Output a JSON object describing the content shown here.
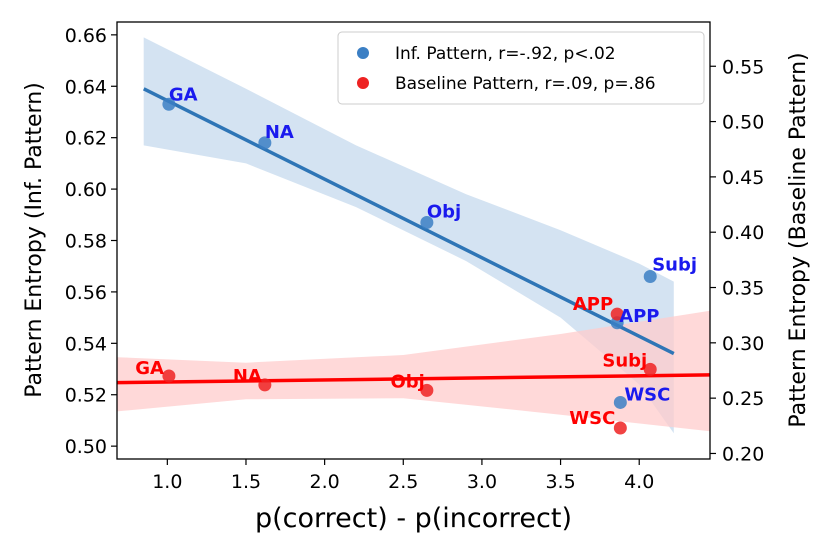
{
  "chart_data": {
    "type": "scatter",
    "xlabel": "p(correct) - p(incorrect)",
    "ylabel_left": "Pattern Entropy (Inf. Pattern)",
    "ylabel_right": "Pattern Entropy (Baseline Pattern)",
    "xlim": [
      0.68,
      4.45
    ],
    "ylim_left": [
      0.495,
      0.665
    ],
    "ylim_right": [
      0.195,
      0.59
    ],
    "x_ticks": [
      "1.0",
      "1.5",
      "2.0",
      "2.5",
      "3.0",
      "3.5",
      "4.0"
    ],
    "y_left_ticks": [
      "0.50",
      "0.52",
      "0.54",
      "0.56",
      "0.58",
      "0.60",
      "0.62",
      "0.64",
      "0.66"
    ],
    "y_right_ticks": [
      "0.20",
      "0.25",
      "0.30",
      "0.35",
      "0.40",
      "0.45",
      "0.50",
      "0.55"
    ],
    "legend": {
      "position": "top-right",
      "entries": [
        {
          "label": "Inf. Pattern, r=-.92, p<.02",
          "color": "#3b7fc4"
        },
        {
          "label": "Baseline Pattern, r=.09, p=.86",
          "color": "#ee2222"
        }
      ]
    },
    "series": [
      {
        "name": "Inf. Pattern",
        "axis": "left",
        "color": "#3b7fc4",
        "line_color": "#2e75b6",
        "band_color": "#c6d9ee",
        "label_color": "#1a1aee",
        "points": [
          {
            "label": "GA",
            "x": 1.01,
            "y": 0.633
          },
          {
            "label": "NA",
            "x": 1.62,
            "y": 0.618
          },
          {
            "label": "Obj",
            "x": 2.65,
            "y": 0.587
          },
          {
            "label": "Subj",
            "x": 4.07,
            "y": 0.566
          },
          {
            "label": "APP",
            "x": 3.86,
            "y": 0.548
          },
          {
            "label": "WSC",
            "x": 3.88,
            "y": 0.517
          }
        ],
        "fit": {
          "x": [
            0.85,
            4.22
          ],
          "y": [
            0.639,
            0.536
          ]
        },
        "band": {
          "x": [
            0.85,
            1.5,
            2.2,
            2.9,
            3.5,
            4.0,
            4.22
          ],
          "upper": [
            0.659,
            0.639,
            0.617,
            0.598,
            0.584,
            0.571,
            0.564
          ],
          "lower": [
            0.617,
            0.61,
            0.593,
            0.572,
            0.55,
            0.524,
            0.505
          ]
        }
      },
      {
        "name": "Baseline Pattern",
        "axis": "right",
        "color": "#ee2222",
        "line_color": "#ff0000",
        "band_color": "#ffcccc",
        "label_color": "#ff0000",
        "points": [
          {
            "label": "GA",
            "x": 1.01,
            "y": 0.27
          },
          {
            "label": "NA",
            "x": 1.62,
            "y": 0.262
          },
          {
            "label": "Obj",
            "x": 2.65,
            "y": 0.257
          },
          {
            "label": "Subj",
            "x": 4.07,
            "y": 0.276
          },
          {
            "label": "APP",
            "x": 3.86,
            "y": 0.326
          },
          {
            "label": "WSC",
            "x": 3.88,
            "y": 0.223
          }
        ],
        "fit": {
          "x": [
            0.68,
            4.45
          ],
          "y": [
            0.264,
            0.271
          ]
        },
        "band": {
          "x": [
            0.68,
            1.5,
            2.5,
            3.5,
            4.45
          ],
          "upper": [
            0.287,
            0.282,
            0.289,
            0.308,
            0.329
          ],
          "lower": [
            0.238,
            0.249,
            0.25,
            0.235,
            0.22
          ]
        }
      }
    ]
  }
}
